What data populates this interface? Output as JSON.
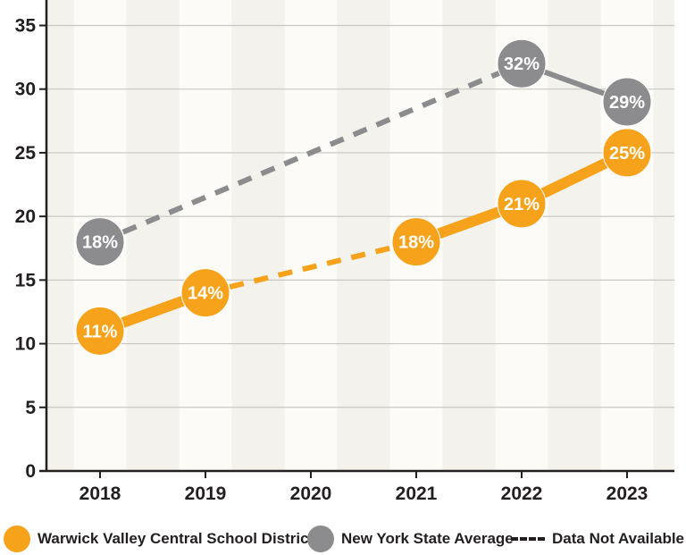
{
  "chart_data": {
    "type": "line",
    "categories": [
      "2018",
      "2019",
      "2020",
      "2021",
      "2022",
      "2023"
    ],
    "yticks": [
      0,
      5,
      10,
      15,
      20,
      25,
      30,
      35
    ],
    "ylim": [
      0,
      37
    ],
    "grid": true,
    "series": [
      {
        "name": "Warwick Valley Central School District",
        "color": "#f7a21b",
        "values": [
          11,
          14,
          null,
          18,
          21,
          25
        ],
        "labels": [
          "11%",
          "14%",
          "",
          "18%",
          "21%",
          "25%"
        ]
      },
      {
        "name": "New York State Average",
        "color": "#8c8c8f",
        "values": [
          18,
          null,
          null,
          null,
          32,
          29
        ],
        "labels": [
          "18%",
          "",
          "",
          "",
          "32%",
          "29%"
        ]
      }
    ],
    "legend_position": "bottom",
    "missing_label": "Data Not Available"
  }
}
